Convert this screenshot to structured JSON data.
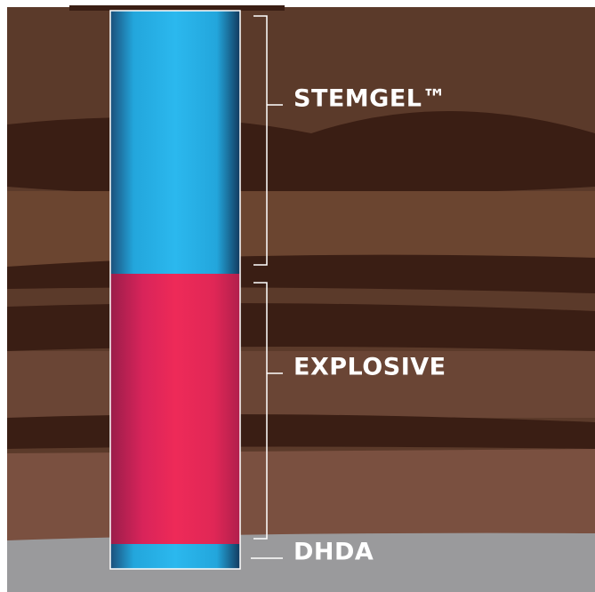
{
  "labels": {
    "stemgel": "STEMGEL™",
    "explosive": "EXPLOSIVE",
    "dhda": "DHDA"
  }
}
